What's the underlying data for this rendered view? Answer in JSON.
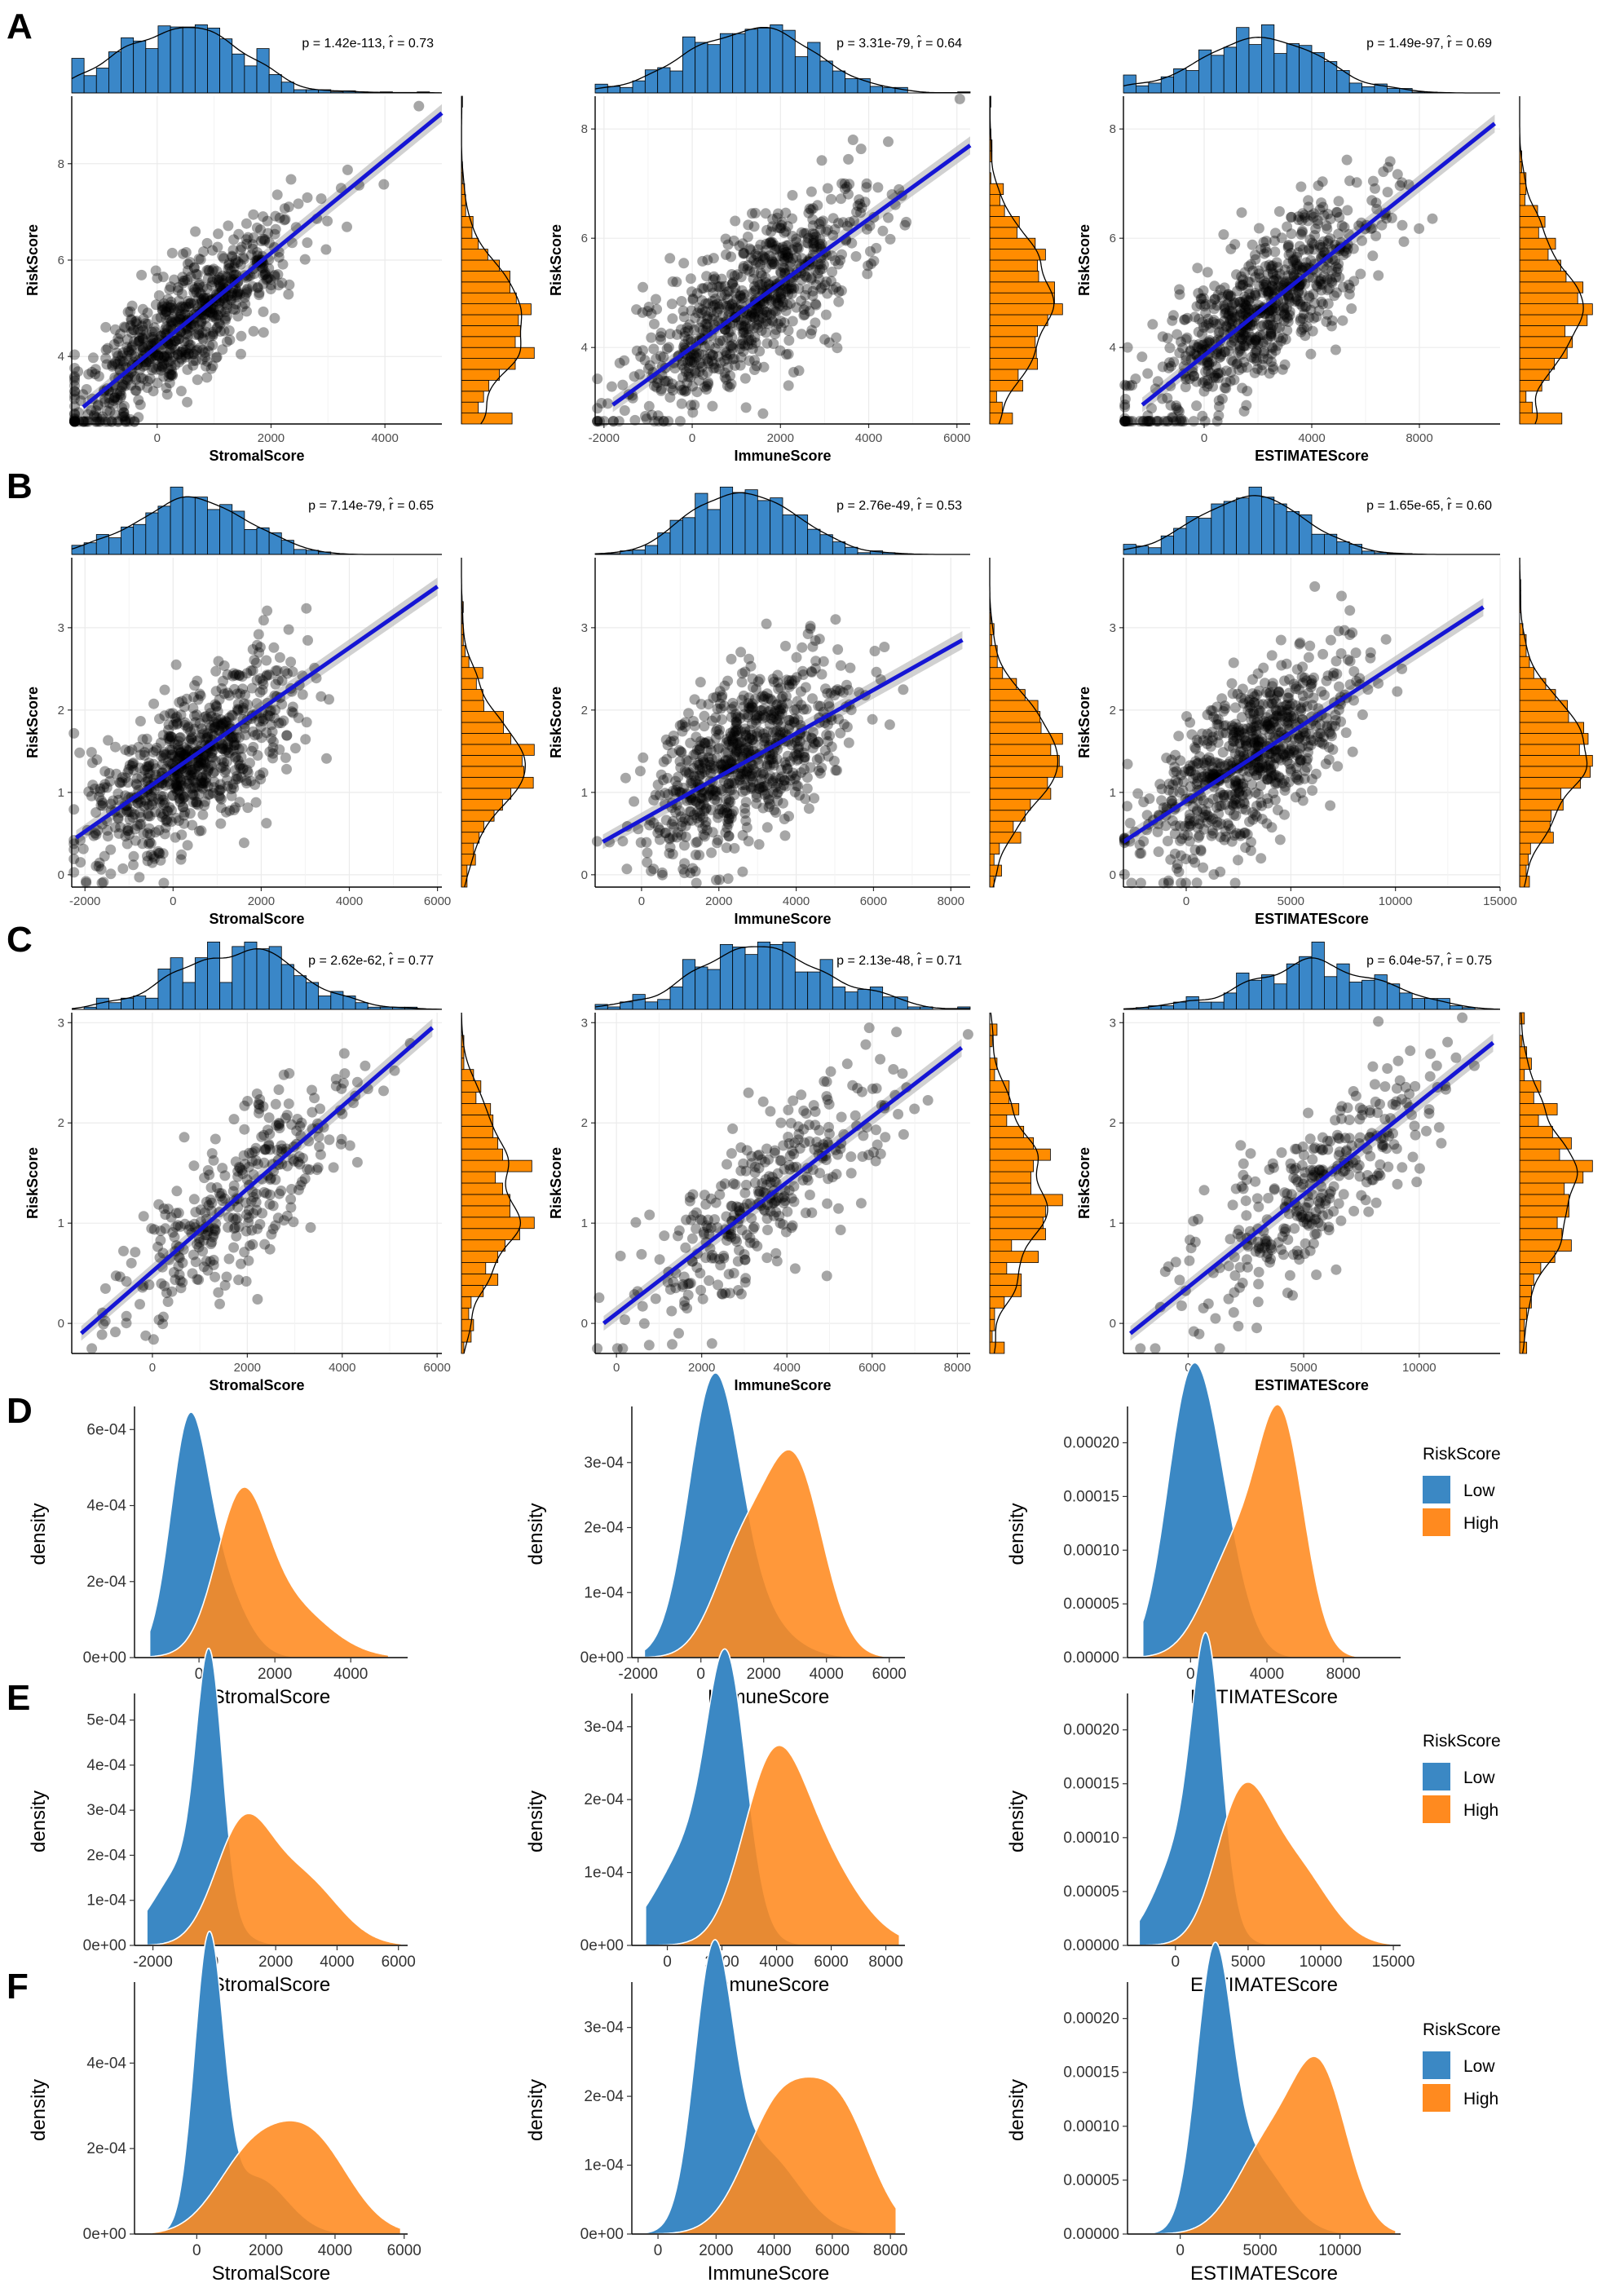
{
  "colors": {
    "hist_blue": "#3a87c8",
    "hist_orange": "#ff8c00",
    "point": "#000000",
    "fit_line": "#1515d4",
    "ci_band": "#bdbdbd",
    "grid": "#ebebeb",
    "density_low": "#3b88c4",
    "density_high": "#ff8a1f"
  },
  "legend": {
    "title": "RiskScore",
    "low_label": "Low",
    "high_label": "High"
  },
  "ylabel_scatter": "RiskScore",
  "ylabel_density": "density",
  "chart_data": [
    {
      "panel": "A",
      "type": "scatter",
      "title": "",
      "xlabel": "StromalScore",
      "ylabel": "RiskScore",
      "annotation": "p = 1.42e-113, r̂ = 0.73",
      "xlim": [
        -1500,
        5000
      ],
      "ylim": [
        2.6,
        9.4
      ],
      "xticks": [
        0,
        2000,
        4000
      ],
      "yticks": [
        4,
        6,
        8
      ],
      "fit": {
        "x0": -1300,
        "y0": 2.95,
        "x1": 5000,
        "y1": 9.05
      },
      "point_spec": {
        "n": 750,
        "xmean": 500,
        "xsd": 1150,
        "intercept": 4.2,
        "slope": 0.00097,
        "noise": 0.8,
        "seed": 11
      },
      "show_xaxis": true
    },
    {
      "panel": "A",
      "type": "scatter",
      "title": "",
      "xlabel": "ImmuneScore",
      "ylabel": "RiskScore",
      "annotation": "p = 3.31e-79, r̂ = 0.64",
      "xlim": [
        -2200,
        6300
      ],
      "ylim": [
        2.6,
        8.6
      ],
      "xticks": [
        -2000,
        0,
        2000,
        4000,
        6000
      ],
      "yticks": [
        4,
        6,
        8
      ],
      "fit": {
        "x0": -1800,
        "y0": 2.95,
        "x1": 6300,
        "y1": 7.7
      },
      "point_spec": {
        "n": 750,
        "xmean": 1300,
        "xsd": 1500,
        "intercept": 4.0,
        "slope": 0.00058,
        "noise": 0.9,
        "seed": 23
      },
      "show_xaxis": true
    },
    {
      "panel": "A",
      "type": "scatter",
      "title": "",
      "xlabel": "ESTIMATEScore",
      "ylabel": "RiskScore",
      "annotation": "p = 1.49e-97, r̂ = 0.69",
      "xlim": [
        -3000,
        11000
      ],
      "ylim": [
        2.6,
        8.6
      ],
      "xticks": [
        0,
        4000,
        8000
      ],
      "yticks": [
        4,
        6,
        8
      ],
      "fit": {
        "x0": -2300,
        "y0": 2.95,
        "x1": 10800,
        "y1": 8.1
      },
      "point_spec": {
        "n": 750,
        "xmean": 2200,
        "xsd": 2500,
        "intercept": 3.85,
        "slope": 0.00039,
        "noise": 0.85,
        "seed": 37
      },
      "show_xaxis": true
    },
    {
      "panel": "B",
      "type": "scatter",
      "title": "",
      "xlabel": "StromalScore",
      "ylabel": "RiskScore",
      "annotation": "p = 7.14e-79, r̂ = 0.65",
      "xlim": [
        -2300,
        6100
      ],
      "ylim": [
        -0.15,
        3.85
      ],
      "xticks": [
        -2000,
        0,
        2000,
        4000,
        6000
      ],
      "yticks": [
        0,
        1,
        2,
        3
      ],
      "fit": {
        "x0": -2200,
        "y0": 0.45,
        "x1": 6000,
        "y1": 3.5
      },
      "point_spec": {
        "n": 750,
        "xmean": 400,
        "xsd": 1300,
        "intercept": 1.2,
        "slope": 0.00037,
        "noise": 0.62,
        "seed": 41
      },
      "show_xaxis": true
    },
    {
      "panel": "B",
      "type": "scatter",
      "title": "",
      "xlabel": "ImmuneScore",
      "ylabel": "RiskScore",
      "annotation": "p = 2.76e-49, r̂ = 0.53",
      "xlim": [
        -1200,
        8500
      ],
      "ylim": [
        -0.15,
        3.85
      ],
      "xticks": [
        0,
        2000,
        4000,
        6000,
        8000
      ],
      "yticks": [
        0,
        1,
        2,
        3
      ],
      "fit": {
        "x0": -1000,
        "y0": 0.4,
        "x1": 8300,
        "y1": 2.85
      },
      "point_spec": {
        "n": 750,
        "xmean": 2700,
        "xsd": 1500,
        "intercept": 0.7,
        "slope": 0.00026,
        "noise": 0.68,
        "seed": 53
      },
      "show_xaxis": true
    },
    {
      "panel": "B",
      "type": "scatter",
      "title": "",
      "xlabel": "ESTIMATEScore",
      "ylabel": "RiskScore",
      "annotation": "p = 1.65e-65, r̂ = 0.60",
      "xlim": [
        -3000,
        15000
      ],
      "ylim": [
        -0.15,
        3.85
      ],
      "xticks": [
        0,
        5000,
        10000,
        15000
      ],
      "yticks": [
        0,
        1,
        2,
        3
      ],
      "fit": {
        "x0": -3000,
        "y0": 0.4,
        "x1": 14200,
        "y1": 3.25
      },
      "point_spec": {
        "n": 750,
        "xmean": 3100,
        "xsd": 2700,
        "intercept": 0.9,
        "slope": 0.000165,
        "noise": 0.62,
        "seed": 67
      },
      "show_xaxis": true
    },
    {
      "panel": "C",
      "type": "scatter",
      "title": "",
      "xlabel": "StromalScore",
      "ylabel": "RiskScore",
      "annotation": "p = 2.62e-62, r̂ = 0.77",
      "xlim": [
        -1700,
        6100
      ],
      "ylim": [
        -0.3,
        3.1
      ],
      "xticks": [
        0,
        2000,
        4000,
        6000
      ],
      "yticks": [
        0,
        1,
        2,
        3
      ],
      "fit": {
        "x0": -1500,
        "y0": -0.1,
        "x1": 5900,
        "y1": 2.95
      },
      "point_spec": {
        "n": 330,
        "xmean": 1900,
        "xsd": 1450,
        "intercept": 0.5,
        "slope": 0.00041,
        "noise": 0.5,
        "seed": 79
      },
      "show_xaxis": true
    },
    {
      "panel": "C",
      "type": "scatter",
      "title": "",
      "xlabel": "ImmuneScore",
      "ylabel": "RiskScore",
      "annotation": "p = 2.13e-48, r̂ = 0.71",
      "xlim": [
        -500,
        8300
      ],
      "ylim": [
        -0.3,
        3.1
      ],
      "xticks": [
        0,
        2000,
        4000,
        6000,
        8000
      ],
      "yticks": [
        0,
        1,
        2,
        3
      ],
      "fit": {
        "x0": -300,
        "y0": 0.0,
        "x1": 8100,
        "y1": 2.75
      },
      "point_spec": {
        "n": 330,
        "xmean": 3500,
        "xsd": 1800,
        "intercept": 0.1,
        "slope": 0.00033,
        "noise": 0.5,
        "seed": 83
      },
      "show_xaxis": true
    },
    {
      "panel": "C",
      "type": "scatter",
      "title": "",
      "xlabel": "ESTIMATEScore",
      "ylabel": "RiskScore",
      "annotation": "p = 6.04e-57, r̂ = 0.75",
      "xlim": [
        -2800,
        13500
      ],
      "ylim": [
        -0.3,
        3.1
      ],
      "xticks": [
        0,
        5000,
        10000
      ],
      "yticks": [
        0,
        1,
        2,
        3
      ],
      "fit": {
        "x0": -2500,
        "y0": -0.1,
        "x1": 13200,
        "y1": 2.8
      },
      "point_spec": {
        "n": 330,
        "xmean": 5500,
        "xsd": 3200,
        "intercept": 0.3,
        "slope": 0.00019,
        "noise": 0.5,
        "seed": 97
      },
      "show_xaxis": true
    },
    {
      "panel": "D",
      "type": "area",
      "xlabel": "StromalScore",
      "ylabel": "density",
      "xlim": [
        -1700,
        5500
      ],
      "ylim": [
        0,
        0.00065
      ],
      "xticks": [
        0,
        2000,
        4000
      ],
      "yticks": [
        0,
        0.0002,
        0.0004,
        0.0006
      ],
      "ytick_labels": [
        "0e+00",
        "2e-04",
        "4e-04",
        "6e-04"
      ],
      "range": [
        -1300,
        5000
      ],
      "series": [
        {
          "name": "Low",
          "components": [
            [
              0.6,
              -300,
              480
            ],
            [
              0.4,
              400,
              700
            ]
          ]
        },
        {
          "name": "High",
          "components": [
            [
              0.55,
              1100,
              650
            ],
            [
              0.45,
              2100,
              1150
            ]
          ]
        }
      ]
    },
    {
      "panel": "D",
      "type": "area",
      "xlabel": "ImmuneScore",
      "ylabel": "density",
      "xlim": [
        -2200,
        6500
      ],
      "ylim": [
        0,
        0.00038
      ],
      "xticks": [
        -2000,
        0,
        2000,
        4000,
        6000
      ],
      "yticks": [
        0,
        0.0001,
        0.0002,
        0.0003
      ],
      "ytick_labels": [
        "0e+00",
        "1e-04",
        "2e-04",
        "3e-04"
      ],
      "range": [
        -1800,
        6200
      ],
      "series": [
        {
          "name": "Low",
          "components": [
            [
              0.75,
              400,
              800
            ],
            [
              0.25,
              1300,
              1200
            ]
          ]
        },
        {
          "name": "High",
          "components": [
            [
              0.35,
              1300,
              900
            ],
            [
              0.65,
              3000,
              900
            ]
          ]
        }
      ]
    },
    {
      "panel": "D",
      "type": "area",
      "xlabel": "ESTIMATEScore",
      "ylabel": "density",
      "xlim": [
        -3300,
        11000
      ],
      "ylim": [
        0,
        0.00023
      ],
      "xticks": [
        0,
        4000,
        8000
      ],
      "yticks": [
        0,
        5e-05,
        0.0001,
        0.00015,
        0.0002
      ],
      "ytick_labels": [
        "0.00000",
        "0.00005",
        "0.00010",
        "0.00015",
        "0.00020"
      ],
      "range": [
        -2500,
        10500
      ],
      "series": [
        {
          "name": "Low",
          "components": [
            [
              0.6,
              -200,
              1200
            ],
            [
              0.4,
              1300,
              1300
            ]
          ]
        },
        {
          "name": "High",
          "components": [
            [
              0.4,
              2400,
              1600
            ],
            [
              0.6,
              4800,
              1200
            ]
          ]
        }
      ]
    },
    {
      "panel": "E",
      "type": "area",
      "xlabel": "StromalScore",
      "ylabel": "density",
      "xlim": [
        -2600,
        6300
      ],
      "ylim": [
        0,
        0.00055
      ],
      "xticks": [
        -2000,
        0,
        2000,
        4000,
        6000
      ],
      "yticks": [
        0,
        0.0001,
        0.0002,
        0.0003,
        0.0004,
        0.0005
      ],
      "ytick_labels": [
        "0e+00",
        "1e-04",
        "2e-04",
        "3e-04",
        "4e-04",
        "5e-04"
      ],
      "range": [
        -2200,
        6100
      ],
      "series": [
        {
          "name": "Low",
          "components": [
            [
              0.55,
              -150,
              420
            ],
            [
              0.45,
              -900,
              1000
            ]
          ]
        },
        {
          "name": "High",
          "components": [
            [
              0.55,
              900,
              900
            ],
            [
              0.45,
              2800,
              1200
            ]
          ]
        }
      ]
    },
    {
      "panel": "E",
      "type": "area",
      "xlabel": "ImmuneScore",
      "ylabel": "density",
      "xlim": [
        -1300,
        8700
      ],
      "ylim": [
        0,
        0.00034
      ],
      "xticks": [
        0,
        2000,
        4000,
        6000,
        8000
      ],
      "yticks": [
        0,
        0.0001,
        0.0002,
        0.0003
      ],
      "ytick_labels": [
        "0e+00",
        "1e-04",
        "2e-04",
        "3e-04"
      ],
      "range": [
        -800,
        8500
      ],
      "series": [
        {
          "name": "Low",
          "components": [
            [
              0.55,
              2200,
              700
            ],
            [
              0.45,
              1000,
              1300
            ]
          ]
        },
        {
          "name": "High",
          "components": [
            [
              0.55,
              3800,
              1100
            ],
            [
              0.45,
              5400,
              1500
            ]
          ]
        }
      ]
    },
    {
      "panel": "E",
      "type": "area",
      "xlabel": "ESTIMATEScore",
      "ylabel": "density",
      "xlim": [
        -3300,
        15500
      ],
      "ylim": [
        0,
        0.00023
      ],
      "xticks": [
        0,
        5000,
        10000,
        15000
      ],
      "yticks": [
        0,
        5e-05,
        0.0001,
        0.00015,
        0.0002
      ],
      "ytick_labels": [
        "0.00000",
        "0.00005",
        "0.00010",
        "0.00015",
        "0.00020"
      ],
      "range": [
        -2500,
        14800
      ],
      "series": [
        {
          "name": "Low",
          "components": [
            [
              0.55,
              2200,
              1000
            ],
            [
              0.45,
              700,
              1900
            ]
          ]
        },
        {
          "name": "High",
          "components": [
            [
              0.55,
              4500,
              1800
            ],
            [
              0.45,
              8000,
              2400
            ]
          ]
        }
      ]
    },
    {
      "panel": "F",
      "type": "area",
      "xlabel": "StromalScore",
      "ylabel": "density",
      "xlim": [
        -1800,
        6100
      ],
      "ylim": [
        0,
        0.00058
      ],
      "xticks": [
        0,
        2000,
        4000,
        6000
      ],
      "yticks": [
        0,
        0.0002,
        0.0004
      ],
      "ytick_labels": [
        "0e+00",
        "2e-04",
        "4e-04"
      ],
      "range": [
        -1300,
        5900
      ],
      "series": [
        {
          "name": "Low",
          "components": [
            [
              0.7,
              350,
              420
            ],
            [
              0.3,
              1700,
              900
            ]
          ]
        },
        {
          "name": "High",
          "components": [
            [
              0.4,
              1500,
              1000
            ],
            [
              0.6,
              3300,
              1100
            ]
          ]
        }
      ]
    },
    {
      "panel": "F",
      "type": "area",
      "xlabel": "ImmuneScore",
      "ylabel": "density",
      "xlim": [
        -900,
        8500
      ],
      "ylim": [
        0,
        0.00036
      ],
      "xticks": [
        0,
        2000,
        4000,
        6000,
        8000
      ],
      "yticks": [
        0,
        0.0001,
        0.0002,
        0.0003
      ],
      "ytick_labels": [
        "0e+00",
        "1e-04",
        "2e-04",
        "3e-04"
      ],
      "range": [
        -500,
        8200
      ],
      "series": [
        {
          "name": "Low",
          "components": [
            [
              0.6,
              1900,
              650
            ],
            [
              0.4,
              3500,
              1300
            ]
          ]
        },
        {
          "name": "High",
          "components": [
            [
              0.55,
              4200,
              1200
            ],
            [
              0.45,
              6300,
              1100
            ]
          ]
        }
      ]
    },
    {
      "panel": "F",
      "type": "area",
      "xlabel": "ESTIMATEScore",
      "ylabel": "density",
      "xlim": [
        -3300,
        13800
      ],
      "ylim": [
        0,
        0.00023
      ],
      "xticks": [
        0,
        5000,
        10000
      ],
      "yticks": [
        0,
        5e-05,
        0.0001,
        0.00015,
        0.0002
      ],
      "ytick_labels": [
        "0.00000",
        "0.00005",
        "0.00010",
        "0.00015",
        "0.00020"
      ],
      "range": [
        -2200,
        13500
      ],
      "series": [
        {
          "name": "Low",
          "components": [
            [
              0.65,
              2100,
              1100
            ],
            [
              0.35,
              4500,
              2000
            ]
          ]
        },
        {
          "name": "High",
          "components": [
            [
              0.4,
              5500,
              2000
            ],
            [
              0.6,
              8800,
              1700
            ]
          ]
        }
      ]
    }
  ],
  "panels": [
    "A",
    "B",
    "C",
    "D",
    "E",
    "F"
  ]
}
